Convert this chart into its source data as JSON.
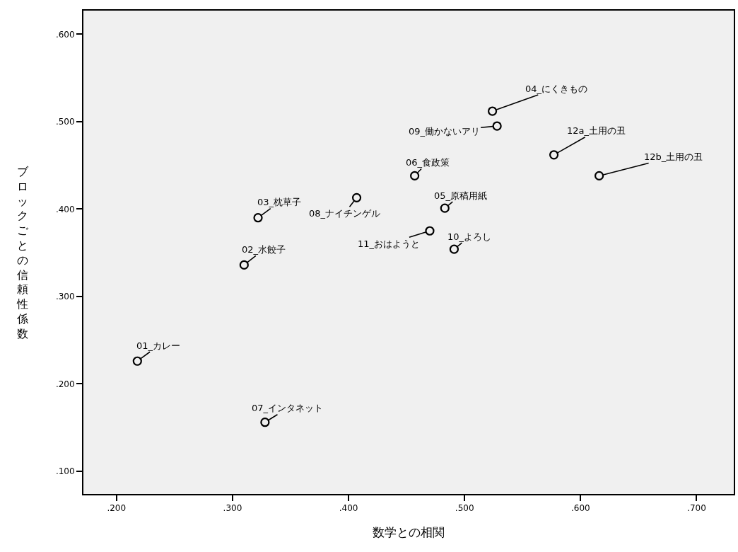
{
  "chart_data": {
    "type": "scatter",
    "xlabel": "数学との相関",
    "ylabel": "ブロックごとの信頼性係数",
    "x": [
      0.218,
      0.31,
      0.322,
      0.524,
      0.483,
      0.457,
      0.328,
      0.407,
      0.528,
      0.491,
      0.47,
      0.577,
      0.616
    ],
    "series": [
      {
        "color": "#000000",
        "values": [
          0.226,
          0.336,
          0.39,
          0.512,
          0.401,
          0.438,
          0.156,
          0.413,
          0.495,
          0.354,
          0.375,
          0.462,
          0.438
        ]
      }
    ],
    "annotations": [
      {
        "text": "01_カレー",
        "x": 0.218,
        "y": 0.226
      },
      {
        "text": "02_水餃子",
        "x": 0.31,
        "y": 0.336
      },
      {
        "text": "03_枕草子",
        "x": 0.322,
        "y": 0.39
      },
      {
        "text": "04_にくきもの",
        "x": 0.524,
        "y": 0.512
      },
      {
        "text": "05_原稿用紙",
        "x": 0.483,
        "y": 0.401
      },
      {
        "text": "06_食政策",
        "x": 0.457,
        "y": 0.438
      },
      {
        "text": "07_インタネット",
        "x": 0.328,
        "y": 0.156
      },
      {
        "text": "08_ナイチンゲル",
        "x": 0.407,
        "y": 0.413
      },
      {
        "text": "09_働かないアリ",
        "x": 0.528,
        "y": 0.495
      },
      {
        "text": "10_よろし",
        "x": 0.491,
        "y": 0.354
      },
      {
        "text": "11_おはようと",
        "x": 0.47,
        "y": 0.375
      },
      {
        "text": "12a_土用の丑",
        "x": 0.577,
        "y": 0.462
      },
      {
        "text": "12b_土用の丑",
        "x": 0.616,
        "y": 0.438
      }
    ],
    "xlim": [
      0.1715,
      0.732
    ],
    "ylim": [
      0.074,
      0.627
    ],
    "xticks": [
      {
        "value": 0.2,
        "label": ".200"
      },
      {
        "value": 0.3,
        "label": ".300"
      },
      {
        "value": 0.4,
        "label": ".400"
      },
      {
        "value": 0.5,
        "label": ".500"
      },
      {
        "value": 0.6,
        "label": ".600"
      },
      {
        "value": 0.7,
        "label": ".700"
      }
    ],
    "yticks": [
      {
        "value": 0.1,
        "label": ".100"
      },
      {
        "value": 0.2,
        "label": ".200"
      },
      {
        "value": 0.3,
        "label": ".300"
      },
      {
        "value": 0.4,
        "label": ".400"
      },
      {
        "value": 0.5,
        "label": ".500"
      },
      {
        "value": 0.6,
        "label": ".600"
      }
    ],
    "marker": "circle",
    "grid": false
  }
}
